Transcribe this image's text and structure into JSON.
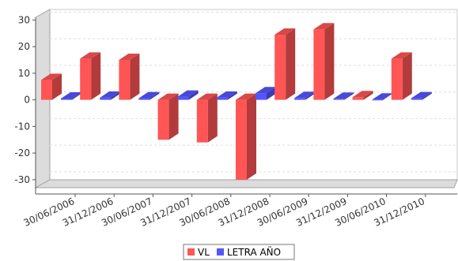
{
  "chart_data": {
    "type": "bar",
    "style": "3d-clustered",
    "categories": [
      "30/06/2006",
      "31/12/2006",
      "30/06/2007",
      "31/12/2007",
      "30/06/2008",
      "31/12/2008",
      "30/06/2009",
      "31/12/2009",
      "30/06/2010",
      "31/12/2010"
    ],
    "series": [
      {
        "name": "VL",
        "color": "#ff5555",
        "values": [
          7.5,
          15.5,
          15,
          -15,
          -16,
          -30,
          24.5,
          26.5,
          1.0,
          15.5
        ]
      },
      {
        "name": "LETRA AÑO",
        "color": "#5555ff",
        "values": [
          0.5,
          0.8,
          0.6,
          1.2,
          0.8,
          2.5,
          0.7,
          0.4,
          0.1,
          0.6
        ]
      }
    ],
    "ylim": [
      -33,
      31
    ],
    "yticks": [
      -30,
      -20,
      -10,
      0,
      10,
      20,
      30
    ],
    "grid": true,
    "legend_position": "bottom-center",
    "title": "",
    "xlabel": "",
    "ylabel": ""
  }
}
